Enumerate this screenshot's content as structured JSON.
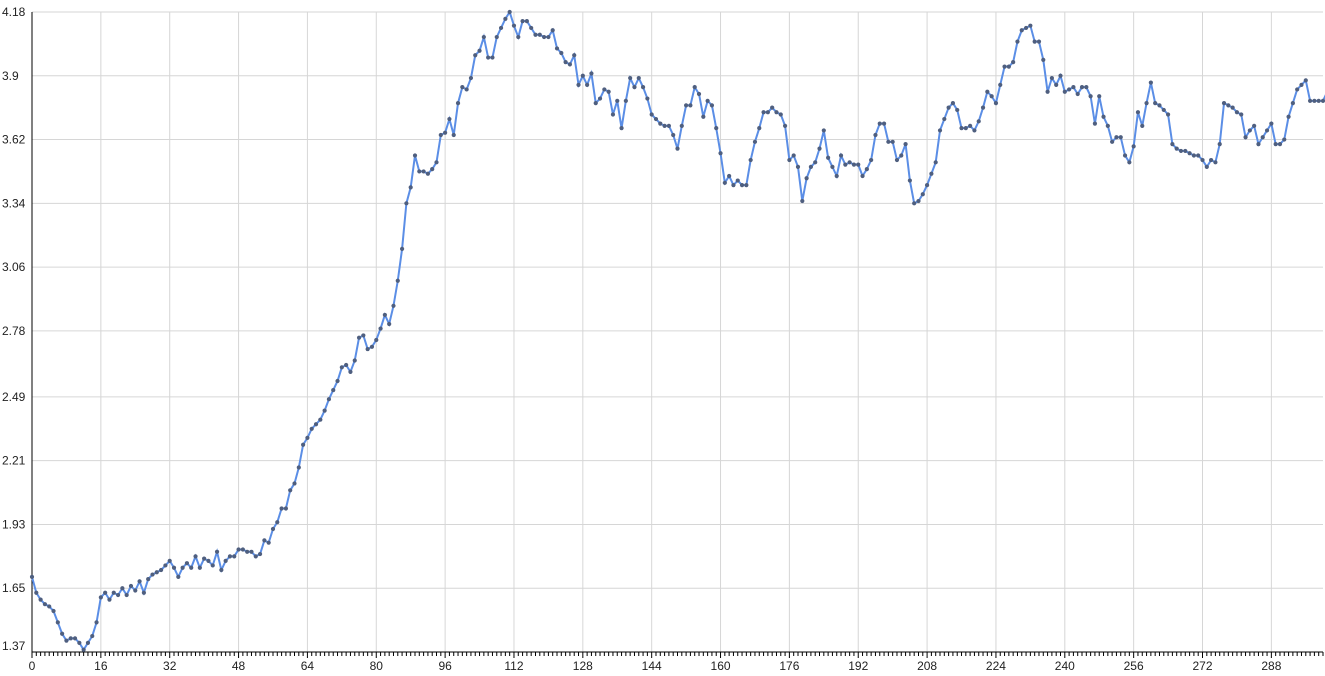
{
  "chart_data": {
    "type": "line",
    "title": "",
    "xlabel": "",
    "ylabel": "",
    "xlim": [
      0,
      300
    ],
    "ylim": [
      1.37,
      4.18
    ],
    "x_ticks": [
      "0",
      "16",
      "32",
      "48",
      "64",
      "80",
      "96",
      "112",
      "128",
      "144",
      "160",
      "176",
      "192",
      "208",
      "224",
      "240",
      "256",
      "272",
      "288"
    ],
    "y_ticks": [
      "4.18",
      "3.9",
      "3.62",
      "3.34",
      "3.06",
      "2.78",
      "2.49",
      "2.21",
      "1.93",
      "1.65",
      "1.37"
    ],
    "grid": true,
    "series": [
      {
        "name": "",
        "color": "#5b8ee6",
        "marker_color": "#4f5f7f",
        "values": [
          1.7,
          1.63,
          1.6,
          1.58,
          1.57,
          1.55,
          1.5,
          1.45,
          1.42,
          1.43,
          1.43,
          1.41,
          1.38,
          1.41,
          1.44,
          1.5,
          1.61,
          1.63,
          1.6,
          1.63,
          1.62,
          1.65,
          1.62,
          1.66,
          1.64,
          1.68,
          1.63,
          1.69,
          1.71,
          1.72,
          1.73,
          1.75,
          1.77,
          1.74,
          1.7,
          1.74,
          1.76,
          1.74,
          1.79,
          1.74,
          1.78,
          1.77,
          1.75,
          1.81,
          1.73,
          1.77,
          1.79,
          1.79,
          1.82,
          1.82,
          1.81,
          1.81,
          1.79,
          1.8,
          1.86,
          1.85,
          1.91,
          1.94,
          2.0,
          2.0,
          2.08,
          2.11,
          2.18,
          2.28,
          2.31,
          2.35,
          2.37,
          2.39,
          2.43,
          2.48,
          2.52,
          2.56,
          2.62,
          2.63,
          2.6,
          2.65,
          2.75,
          2.76,
          2.7,
          2.71,
          2.74,
          2.79,
          2.85,
          2.81,
          2.89,
          3.0,
          3.14,
          3.34,
          3.41,
          3.55,
          3.48,
          3.48,
          3.47,
          3.49,
          3.52,
          3.64,
          3.65,
          3.71,
          3.64,
          3.78,
          3.85,
          3.84,
          3.89,
          3.99,
          4.01,
          4.07,
          3.98,
          3.98,
          4.07,
          4.11,
          4.15,
          4.18,
          4.12,
          4.07,
          4.14,
          4.14,
          4.11,
          4.08,
          4.08,
          4.07,
          4.07,
          4.1,
          4.02,
          4.0,
          3.96,
          3.95,
          3.99,
          3.86,
          3.9,
          3.86,
          3.91,
          3.78,
          3.8,
          3.84,
          3.83,
          3.73,
          3.79,
          3.67,
          3.79,
          3.89,
          3.85,
          3.89,
          3.85,
          3.8,
          3.73,
          3.71,
          3.69,
          3.68,
          3.68,
          3.64,
          3.58,
          3.68,
          3.77,
          3.77,
          3.85,
          3.82,
          3.72,
          3.79,
          3.77,
          3.67,
          3.56,
          3.43,
          3.46,
          3.42,
          3.44,
          3.42,
          3.42,
          3.53,
          3.61,
          3.67,
          3.74,
          3.74,
          3.76,
          3.74,
          3.73,
          3.68,
          3.53,
          3.55,
          3.5,
          3.35,
          3.45,
          3.5,
          3.52,
          3.58,
          3.66,
          3.54,
          3.5,
          3.46,
          3.55,
          3.51,
          3.52,
          3.51,
          3.51,
          3.46,
          3.49,
          3.53,
          3.64,
          3.69,
          3.69,
          3.61,
          3.61,
          3.53,
          3.55,
          3.6,
          3.44,
          3.34,
          3.35,
          3.38,
          3.42,
          3.47,
          3.52,
          3.66,
          3.71,
          3.76,
          3.78,
          3.75,
          3.67,
          3.67,
          3.68,
          3.66,
          3.7,
          3.76,
          3.83,
          3.81,
          3.78,
          3.86,
          3.94,
          3.94,
          3.96,
          4.05,
          4.1,
          4.11,
          4.12,
          4.05,
          4.05,
          3.97,
          3.83,
          3.89,
          3.86,
          3.9,
          3.83,
          3.84,
          3.85,
          3.82,
          3.85,
          3.85,
          3.81,
          3.69,
          3.81,
          3.72,
          3.68,
          3.61,
          3.63,
          3.63,
          3.55,
          3.52,
          3.59,
          3.74,
          3.68,
          3.78,
          3.87,
          3.78,
          3.77,
          3.75,
          3.73,
          3.6,
          3.58,
          3.57,
          3.57,
          3.56,
          3.55,
          3.55,
          3.53,
          3.5,
          3.53,
          3.52,
          3.6,
          3.78,
          3.77,
          3.76,
          3.74,
          3.73,
          3.63,
          3.66,
          3.68,
          3.6,
          3.63,
          3.66,
          3.69,
          3.6,
          3.6,
          3.62,
          3.72,
          3.78,
          3.84,
          3.86,
          3.88,
          3.79,
          3.79,
          3.79,
          3.79,
          3.83
        ]
      }
    ]
  }
}
